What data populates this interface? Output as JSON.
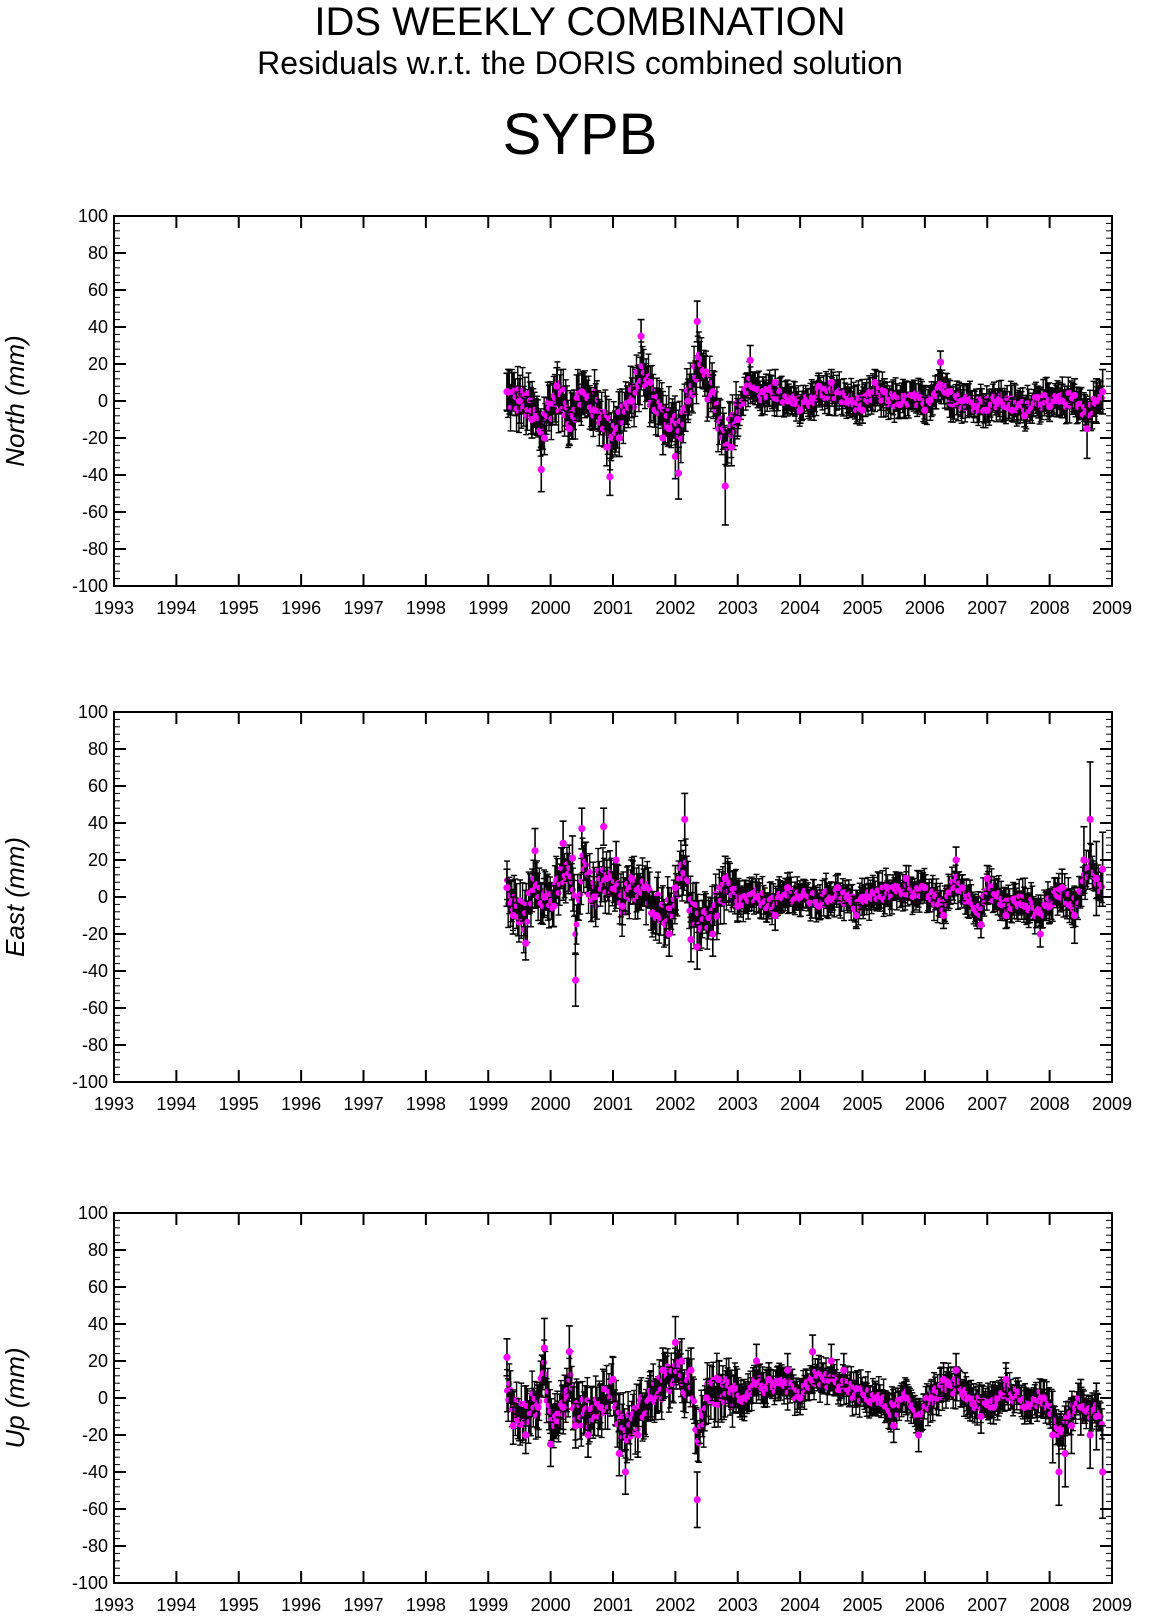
{
  "header": {
    "title": "IDS WEEKLY COMBINATION",
    "subtitle": "Residuals w.r.t. the DORIS combined solution",
    "station": "SYPB"
  },
  "style": {
    "point_color": "#ff00ff",
    "errorbar_color": "#000000",
    "axis_color": "#000000"
  },
  "chart_data": [
    {
      "type": "scatter",
      "component": "north",
      "ylabel": "North (mm)",
      "xlim": [
        1993,
        2009
      ],
      "ylim": [
        -100,
        100
      ],
      "xticks": [
        "1993",
        "1994",
        "1995",
        "1996",
        "1997",
        "1998",
        "1999",
        "2000",
        "2001",
        "2002",
        "2003",
        "2004",
        "2005",
        "2006",
        "2007",
        "2008",
        "2009"
      ],
      "yticks": [
        "100",
        "80",
        "60",
        "40",
        "20",
        "0",
        "-20",
        "-40",
        "-60",
        "-80",
        "-100"
      ],
      "series": [
        {
          "x": [
            1999.3,
            1999.5,
            1999.7,
            1999.85,
            1999.9,
            2000.1,
            2000.3,
            2000.5,
            2000.7,
            2000.9,
            2000.95,
            2001.1,
            2001.3,
            2001.45,
            2001.6,
            2001.8,
            2001.9,
            2002.0,
            2002.05,
            2002.2,
            2002.35,
            2002.6,
            2002.8,
            2002.9,
            2003.0,
            2003.2,
            2003.4,
            2003.6,
            2003.8,
            2004.0,
            2004.3,
            2004.5,
            2004.8,
            2005.0,
            2005.2,
            2005.35,
            2005.6,
            2005.8,
            2006.0,
            2006.25,
            2006.4,
            2006.6,
            2006.8,
            2007.0,
            2007.2,
            2007.4,
            2007.6,
            2007.8,
            2008.0,
            2008.2,
            2008.4,
            2008.6,
            2008.75,
            2008.85
          ],
          "y": [
            5,
            0,
            -10,
            -37,
            -20,
            8,
            -15,
            5,
            -5,
            -25,
            -41,
            -20,
            0,
            35,
            10,
            -20,
            -15,
            -30,
            -39,
            0,
            43,
            5,
            -46,
            -25,
            -10,
            22,
            5,
            10,
            0,
            -5,
            8,
            10,
            0,
            -5,
            10,
            5,
            -2,
            3,
            -5,
            21,
            5,
            0,
            -3,
            -5,
            0,
            -5,
            -8,
            2,
            -3,
            0,
            3,
            -15,
            0,
            5
          ],
          "err": [
            10,
            12,
            10,
            12,
            9,
            10,
            9,
            10,
            10,
            10,
            10,
            10,
            9,
            9,
            9,
            9,
            9,
            12,
            14,
            10,
            11,
            9,
            21,
            10,
            9,
            8,
            8,
            7,
            7,
            7,
            7,
            7,
            7,
            7,
            7,
            7,
            7,
            7,
            7,
            6,
            6,
            6,
            6,
            6,
            6,
            6,
            6,
            6,
            8,
            9,
            9,
            16,
            12,
            12
          ]
        }
      ]
    },
    {
      "type": "scatter",
      "component": "east",
      "ylabel": "East (mm)",
      "xlim": [
        1993,
        2009
      ],
      "ylim": [
        -100,
        100
      ],
      "xticks": [
        "1993",
        "1994",
        "1995",
        "1996",
        "1997",
        "1998",
        "1999",
        "2000",
        "2001",
        "2002",
        "2003",
        "2004",
        "2005",
        "2006",
        "2007",
        "2008",
        "2009"
      ],
      "yticks": [
        "100",
        "80",
        "60",
        "40",
        "20",
        "0",
        "-20",
        "-40",
        "-60",
        "-80",
        "-100"
      ],
      "series": [
        {
          "x": [
            1999.3,
            1999.4,
            1999.6,
            1999.75,
            1999.9,
            2000.05,
            2000.2,
            2000.35,
            2000.4,
            2000.5,
            2000.7,
            2000.85,
            2000.9,
            2001.05,
            2001.15,
            2001.3,
            2001.5,
            2001.7,
            2001.9,
            2002.0,
            2002.15,
            2002.25,
            2002.35,
            2002.6,
            2002.8,
            2003.0,
            2003.3,
            2003.6,
            2003.8,
            2004.0,
            2004.3,
            2004.6,
            2004.9,
            2005.1,
            2005.4,
            2005.7,
            2006.0,
            2006.3,
            2006.5,
            2006.6,
            2006.9,
            2007.0,
            2007.3,
            2007.6,
            2007.85,
            2008.0,
            2008.2,
            2008.4,
            2008.55,
            2008.65,
            2008.75,
            2008.85
          ],
          "y": [
            5,
            -10,
            -25,
            25,
            0,
            -5,
            29,
            21,
            -45,
            37,
            0,
            38,
            10,
            20,
            -5,
            10,
            5,
            -10,
            -20,
            5,
            42,
            -23,
            -27,
            -20,
            10,
            -5,
            0,
            -10,
            5,
            0,
            -5,
            5,
            -10,
            0,
            5,
            10,
            5,
            -10,
            20,
            5,
            -15,
            10,
            -10,
            -5,
            -20,
            -5,
            5,
            -10,
            20,
            42,
            10,
            15
          ],
          "err": [
            10,
            10,
            9,
            12,
            10,
            11,
            12,
            12,
            14,
            11,
            11,
            10,
            10,
            10,
            10,
            10,
            10,
            10,
            12,
            12,
            14,
            12,
            12,
            12,
            12,
            8,
            8,
            8,
            8,
            7,
            7,
            7,
            7,
            7,
            7,
            7,
            7,
            7,
            7,
            7,
            7,
            7,
            7,
            7,
            7,
            9,
            10,
            15,
            18,
            31,
            20,
            20
          ]
        }
      ]
    },
    {
      "type": "scatter",
      "component": "up",
      "ylabel": "Up (mm)",
      "xlim": [
        1993,
        2009
      ],
      "ylim": [
        -100,
        100
      ],
      "xticks": [
        "1993",
        "1994",
        "1995",
        "1996",
        "1997",
        "1998",
        "1999",
        "2000",
        "2001",
        "2002",
        "2003",
        "2004",
        "2005",
        "2006",
        "2007",
        "2008",
        "2009"
      ],
      "yticks": [
        "100",
        "80",
        "60",
        "40",
        "20",
        "0",
        "-20",
        "-40",
        "-60",
        "-80",
        "-100"
      ],
      "series": [
        {
          "x": [
            1999.3,
            1999.4,
            1999.6,
            1999.8,
            1999.9,
            2000.0,
            2000.2,
            2000.3,
            2000.4,
            2000.6,
            2000.8,
            2001.0,
            2001.1,
            2001.2,
            2001.4,
            2001.6,
            2001.8,
            2002.0,
            2002.1,
            2002.25,
            2002.35,
            2002.5,
            2002.7,
            2002.9,
            2003.1,
            2003.3,
            2003.5,
            2003.8,
            2004.0,
            2004.2,
            2004.5,
            2004.7,
            2004.9,
            2005.2,
            2005.5,
            2005.7,
            2005.9,
            2006.1,
            2006.3,
            2006.5,
            2006.7,
            2006.9,
            2007.1,
            2007.3,
            2007.6,
            2007.9,
            2008.05,
            2008.15,
            2008.25,
            2008.35,
            2008.5,
            2008.65,
            2008.75,
            2008.85
          ],
          "y": [
            22,
            -15,
            -20,
            -5,
            27,
            -25,
            -5,
            25,
            -15,
            -20,
            -5,
            10,
            -30,
            -40,
            -20,
            0,
            15,
            30,
            20,
            15,
            -55,
            0,
            10,
            5,
            0,
            20,
            10,
            15,
            0,
            25,
            20,
            15,
            5,
            0,
            -15,
            0,
            -20,
            0,
            10,
            15,
            0,
            -10,
            -5,
            10,
            -5,
            0,
            -20,
            -40,
            -30,
            -15,
            -5,
            -20,
            -10,
            -40
          ],
          "err": [
            10,
            10,
            10,
            12,
            16,
            12,
            12,
            14,
            12,
            12,
            12,
            12,
            12,
            12,
            12,
            12,
            12,
            14,
            12,
            12,
            15,
            10,
            10,
            10,
            10,
            9,
            9,
            9,
            9,
            9,
            9,
            9,
            9,
            9,
            9,
            9,
            9,
            9,
            9,
            9,
            9,
            9,
            9,
            9,
            9,
            9,
            15,
            18,
            18,
            15,
            15,
            18,
            18,
            25
          ]
        }
      ]
    }
  ]
}
